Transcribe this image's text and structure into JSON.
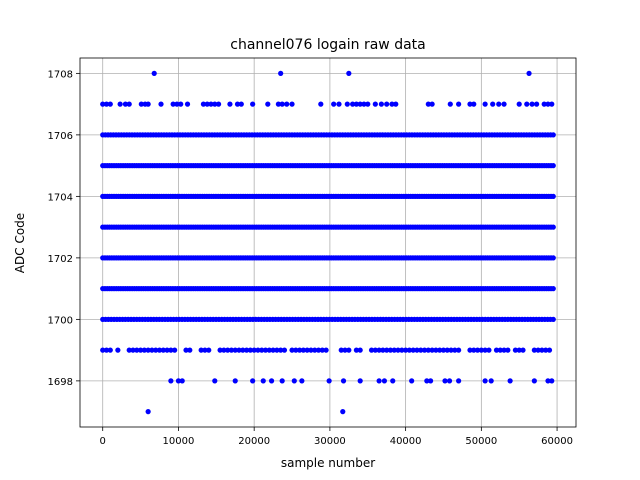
{
  "chart_data": {
    "type": "scatter",
    "title": "channel076 logain raw data",
    "xlabel": "sample number",
    "ylabel": "ADC Code",
    "xlim": [
      -3000,
      62500
    ],
    "ylim": [
      1696.5,
      1708.5
    ],
    "x_ticks": [
      0,
      10000,
      20000,
      30000,
      40000,
      50000,
      60000
    ],
    "y_ticks": [
      1698,
      1700,
      1702,
      1704,
      1706,
      1708
    ],
    "grid": true,
    "marker_color": "#0000ff",
    "series": [
      {
        "color": "#0000ff",
        "dense_levels": [
          {
            "y": 1700,
            "x_range": [
              0,
              59500
            ],
            "count": 160
          },
          {
            "y": 1701,
            "x_range": [
              0,
              59500
            ],
            "count": 200
          },
          {
            "y": 1702,
            "x_range": [
              0,
              59500
            ],
            "count": 200
          },
          {
            "y": 1703,
            "x_range": [
              0,
              59500
            ],
            "count": 200
          },
          {
            "y": 1704,
            "x_range": [
              0,
              59500
            ],
            "count": 200
          },
          {
            "y": 1705,
            "x_range": [
              0,
              59500
            ],
            "count": 200
          },
          {
            "y": 1706,
            "x_range": [
              0,
              59500
            ],
            "count": 170
          }
        ],
        "points": [
          {
            "x": 6800,
            "y": 1708
          },
          {
            "x": 23500,
            "y": 1708
          },
          {
            "x": 32500,
            "y": 1708
          },
          {
            "x": 56300,
            "y": 1708
          },
          {
            "x": 0,
            "y": 1707
          },
          {
            "x": 500,
            "y": 1707
          },
          {
            "x": 1000,
            "y": 1707
          },
          {
            "x": 2300,
            "y": 1707
          },
          {
            "x": 3000,
            "y": 1707
          },
          {
            "x": 3500,
            "y": 1707
          },
          {
            "x": 5100,
            "y": 1707
          },
          {
            "x": 5600,
            "y": 1707
          },
          {
            "x": 6000,
            "y": 1707
          },
          {
            "x": 7700,
            "y": 1707
          },
          {
            "x": 9300,
            "y": 1707
          },
          {
            "x": 9800,
            "y": 1707
          },
          {
            "x": 10300,
            "y": 1707
          },
          {
            "x": 11200,
            "y": 1707
          },
          {
            "x": 13300,
            "y": 1707
          },
          {
            "x": 13800,
            "y": 1707
          },
          {
            "x": 14300,
            "y": 1707
          },
          {
            "x": 14800,
            "y": 1707
          },
          {
            "x": 15300,
            "y": 1707
          },
          {
            "x": 16800,
            "y": 1707
          },
          {
            "x": 17800,
            "y": 1707
          },
          {
            "x": 18300,
            "y": 1707
          },
          {
            "x": 19800,
            "y": 1707
          },
          {
            "x": 21800,
            "y": 1707
          },
          {
            "x": 23200,
            "y": 1707
          },
          {
            "x": 23700,
            "y": 1707
          },
          {
            "x": 24300,
            "y": 1707
          },
          {
            "x": 25000,
            "y": 1707
          },
          {
            "x": 28800,
            "y": 1707
          },
          {
            "x": 30500,
            "y": 1707
          },
          {
            "x": 31200,
            "y": 1707
          },
          {
            "x": 32300,
            "y": 1707
          },
          {
            "x": 33000,
            "y": 1707
          },
          {
            "x": 33500,
            "y": 1707
          },
          {
            "x": 34000,
            "y": 1707
          },
          {
            "x": 34500,
            "y": 1707
          },
          {
            "x": 35000,
            "y": 1707
          },
          {
            "x": 36000,
            "y": 1707
          },
          {
            "x": 36800,
            "y": 1707
          },
          {
            "x": 37500,
            "y": 1707
          },
          {
            "x": 38200,
            "y": 1707
          },
          {
            "x": 38700,
            "y": 1707
          },
          {
            "x": 43000,
            "y": 1707
          },
          {
            "x": 43500,
            "y": 1707
          },
          {
            "x": 45900,
            "y": 1707
          },
          {
            "x": 47000,
            "y": 1707
          },
          {
            "x": 48500,
            "y": 1707
          },
          {
            "x": 49000,
            "y": 1707
          },
          {
            "x": 50500,
            "y": 1707
          },
          {
            "x": 51500,
            "y": 1707
          },
          {
            "x": 52300,
            "y": 1707
          },
          {
            "x": 53000,
            "y": 1707
          },
          {
            "x": 55000,
            "y": 1707
          },
          {
            "x": 56000,
            "y": 1707
          },
          {
            "x": 56700,
            "y": 1707
          },
          {
            "x": 57300,
            "y": 1707
          },
          {
            "x": 58300,
            "y": 1707
          },
          {
            "x": 58800,
            "y": 1707
          },
          {
            "x": 59300,
            "y": 1707
          },
          {
            "x": 0,
            "y": 1699
          },
          {
            "x": 500,
            "y": 1699
          },
          {
            "x": 1000,
            "y": 1699
          },
          {
            "x": 2000,
            "y": 1699
          },
          {
            "x": 3500,
            "y": 1699
          },
          {
            "x": 4000,
            "y": 1699
          },
          {
            "x": 4500,
            "y": 1699
          },
          {
            "x": 5000,
            "y": 1699
          },
          {
            "x": 5500,
            "y": 1699
          },
          {
            "x": 6000,
            "y": 1699
          },
          {
            "x": 6500,
            "y": 1699
          },
          {
            "x": 7000,
            "y": 1699
          },
          {
            "x": 7500,
            "y": 1699
          },
          {
            "x": 8000,
            "y": 1699
          },
          {
            "x": 8500,
            "y": 1699
          },
          {
            "x": 9000,
            "y": 1699
          },
          {
            "x": 9500,
            "y": 1699
          },
          {
            "x": 11000,
            "y": 1699
          },
          {
            "x": 11500,
            "y": 1699
          },
          {
            "x": 13000,
            "y": 1699
          },
          {
            "x": 13500,
            "y": 1699
          },
          {
            "x": 14000,
            "y": 1699
          },
          {
            "x": 15500,
            "y": 1699
          },
          {
            "x": 16000,
            "y": 1699
          },
          {
            "x": 16500,
            "y": 1699
          },
          {
            "x": 17000,
            "y": 1699
          },
          {
            "x": 17500,
            "y": 1699
          },
          {
            "x": 18000,
            "y": 1699
          },
          {
            "x": 18500,
            "y": 1699
          },
          {
            "x": 19000,
            "y": 1699
          },
          {
            "x": 19500,
            "y": 1699
          },
          {
            "x": 20000,
            "y": 1699
          },
          {
            "x": 20500,
            "y": 1699
          },
          {
            "x": 21000,
            "y": 1699
          },
          {
            "x": 21500,
            "y": 1699
          },
          {
            "x": 22000,
            "y": 1699
          },
          {
            "x": 22500,
            "y": 1699
          },
          {
            "x": 23000,
            "y": 1699
          },
          {
            "x": 23500,
            "y": 1699
          },
          {
            "x": 24000,
            "y": 1699
          },
          {
            "x": 25000,
            "y": 1699
          },
          {
            "x": 25500,
            "y": 1699
          },
          {
            "x": 26000,
            "y": 1699
          },
          {
            "x": 26500,
            "y": 1699
          },
          {
            "x": 27000,
            "y": 1699
          },
          {
            "x": 27500,
            "y": 1699
          },
          {
            "x": 28000,
            "y": 1699
          },
          {
            "x": 28500,
            "y": 1699
          },
          {
            "x": 29000,
            "y": 1699
          },
          {
            "x": 29500,
            "y": 1699
          },
          {
            "x": 31500,
            "y": 1699
          },
          {
            "x": 32000,
            "y": 1699
          },
          {
            "x": 32500,
            "y": 1699
          },
          {
            "x": 33500,
            "y": 1699
          },
          {
            "x": 34000,
            "y": 1699
          },
          {
            "x": 35500,
            "y": 1699
          },
          {
            "x": 36000,
            "y": 1699
          },
          {
            "x": 36500,
            "y": 1699
          },
          {
            "x": 37000,
            "y": 1699
          },
          {
            "x": 37500,
            "y": 1699
          },
          {
            "x": 38000,
            "y": 1699
          },
          {
            "x": 38500,
            "y": 1699
          },
          {
            "x": 39000,
            "y": 1699
          },
          {
            "x": 39500,
            "y": 1699
          },
          {
            "x": 40000,
            "y": 1699
          },
          {
            "x": 40500,
            "y": 1699
          },
          {
            "x": 41000,
            "y": 1699
          },
          {
            "x": 41500,
            "y": 1699
          },
          {
            "x": 42000,
            "y": 1699
          },
          {
            "x": 42500,
            "y": 1699
          },
          {
            "x": 43000,
            "y": 1699
          },
          {
            "x": 43500,
            "y": 1699
          },
          {
            "x": 44000,
            "y": 1699
          },
          {
            "x": 44500,
            "y": 1699
          },
          {
            "x": 45000,
            "y": 1699
          },
          {
            "x": 45500,
            "y": 1699
          },
          {
            "x": 46000,
            "y": 1699
          },
          {
            "x": 46500,
            "y": 1699
          },
          {
            "x": 47000,
            "y": 1699
          },
          {
            "x": 48500,
            "y": 1699
          },
          {
            "x": 49000,
            "y": 1699
          },
          {
            "x": 49500,
            "y": 1699
          },
          {
            "x": 50000,
            "y": 1699
          },
          {
            "x": 50500,
            "y": 1699
          },
          {
            "x": 51000,
            "y": 1699
          },
          {
            "x": 52000,
            "y": 1699
          },
          {
            "x": 52500,
            "y": 1699
          },
          {
            "x": 53000,
            "y": 1699
          },
          {
            "x": 53500,
            "y": 1699
          },
          {
            "x": 54500,
            "y": 1699
          },
          {
            "x": 55000,
            "y": 1699
          },
          {
            "x": 55500,
            "y": 1699
          },
          {
            "x": 57000,
            "y": 1699
          },
          {
            "x": 57500,
            "y": 1699
          },
          {
            "x": 58000,
            "y": 1699
          },
          {
            "x": 58500,
            "y": 1699
          },
          {
            "x": 59000,
            "y": 1699
          },
          {
            "x": 9000,
            "y": 1698
          },
          {
            "x": 10000,
            "y": 1698
          },
          {
            "x": 10500,
            "y": 1698
          },
          {
            "x": 14800,
            "y": 1698
          },
          {
            "x": 17500,
            "y": 1698
          },
          {
            "x": 19800,
            "y": 1698
          },
          {
            "x": 21200,
            "y": 1698
          },
          {
            "x": 22300,
            "y": 1698
          },
          {
            "x": 23700,
            "y": 1698
          },
          {
            "x": 25300,
            "y": 1698
          },
          {
            "x": 26300,
            "y": 1698
          },
          {
            "x": 29900,
            "y": 1698
          },
          {
            "x": 31800,
            "y": 1698
          },
          {
            "x": 34000,
            "y": 1698
          },
          {
            "x": 36500,
            "y": 1698
          },
          {
            "x": 37200,
            "y": 1698
          },
          {
            "x": 38300,
            "y": 1698
          },
          {
            "x": 40800,
            "y": 1698
          },
          {
            "x": 42800,
            "y": 1698
          },
          {
            "x": 43300,
            "y": 1698
          },
          {
            "x": 45200,
            "y": 1698
          },
          {
            "x": 45800,
            "y": 1698
          },
          {
            "x": 47000,
            "y": 1698
          },
          {
            "x": 50500,
            "y": 1698
          },
          {
            "x": 51300,
            "y": 1698
          },
          {
            "x": 53800,
            "y": 1698
          },
          {
            "x": 57000,
            "y": 1698
          },
          {
            "x": 58800,
            "y": 1698
          },
          {
            "x": 59300,
            "y": 1698
          },
          {
            "x": 6000,
            "y": 1697
          },
          {
            "x": 31700,
            "y": 1697
          }
        ]
      }
    ]
  }
}
